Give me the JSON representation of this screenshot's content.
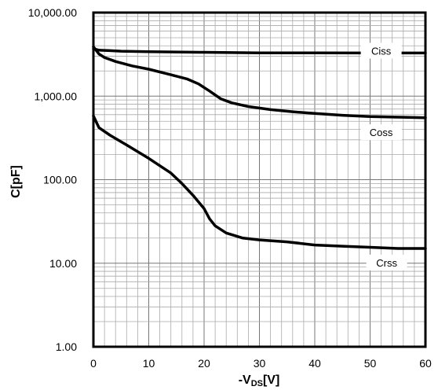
{
  "chart_data": {
    "type": "line",
    "xlabel": "-VDS[V]",
    "xlabel_main": "-V",
    "xlabel_sub": "DS",
    "xlabel_unit": "[V]",
    "ylabel": "C[pF]",
    "xlim": [
      0,
      60
    ],
    "ylim": [
      1,
      10000
    ],
    "yscale": "log",
    "grid": true,
    "x_ticks": [
      0,
      10,
      20,
      30,
      40,
      50,
      60
    ],
    "x_tick_labels": [
      "0",
      "10",
      "20",
      "30",
      "40",
      "50",
      "60"
    ],
    "y_ticks": [
      1,
      10,
      100,
      1000,
      10000
    ],
    "y_tick_labels": [
      "1.00",
      "10.00",
      "100.00",
      "1,000.00",
      "10,000.00"
    ],
    "series": [
      {
        "name": "Ciss",
        "label_at": [
          52,
          3500
        ],
        "points": [
          [
            0,
            3700
          ],
          [
            1,
            3550
          ],
          [
            3,
            3500
          ],
          [
            5,
            3450
          ],
          [
            10,
            3400
          ],
          [
            20,
            3350
          ],
          [
            30,
            3300
          ],
          [
            40,
            3300
          ],
          [
            50,
            3280
          ],
          [
            60,
            3280
          ]
        ]
      },
      {
        "name": "Coss",
        "label_at": [
          52,
          370
        ],
        "points": [
          [
            0,
            3900
          ],
          [
            1,
            3200
          ],
          [
            2,
            2900
          ],
          [
            4,
            2600
          ],
          [
            7,
            2300
          ],
          [
            10,
            2100
          ],
          [
            14,
            1800
          ],
          [
            17,
            1600
          ],
          [
            19,
            1400
          ],
          [
            21,
            1150
          ],
          [
            23,
            930
          ],
          [
            25,
            830
          ],
          [
            28,
            750
          ],
          [
            32,
            690
          ],
          [
            36,
            650
          ],
          [
            40,
            620
          ],
          [
            45,
            590
          ],
          [
            50,
            570
          ],
          [
            55,
            560
          ],
          [
            60,
            550
          ]
        ]
      },
      {
        "name": "Crss",
        "label_at": [
          53,
          10.2
        ],
        "points": [
          [
            0,
            580
          ],
          [
            1,
            420
          ],
          [
            3,
            340
          ],
          [
            6,
            260
          ],
          [
            10,
            180
          ],
          [
            14,
            120
          ],
          [
            16,
            90
          ],
          [
            18,
            65
          ],
          [
            20,
            45
          ],
          [
            21,
            34
          ],
          [
            22,
            28
          ],
          [
            24,
            23
          ],
          [
            27,
            20
          ],
          [
            30,
            19
          ],
          [
            35,
            18
          ],
          [
            40,
            16.5
          ],
          [
            45,
            16
          ],
          [
            50,
            15.5
          ],
          [
            55,
            15
          ],
          [
            60,
            15
          ]
        ]
      }
    ]
  }
}
